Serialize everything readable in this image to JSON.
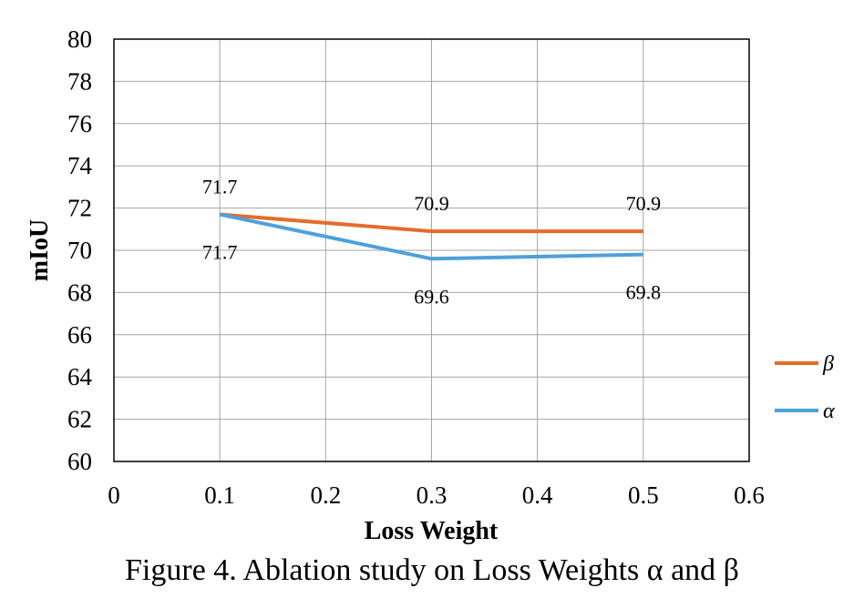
{
  "caption": "Figure 4. Ablation study on Loss Weights α and β",
  "chart_data": {
    "type": "line",
    "xlabel": "Loss Weight",
    "ylabel": "mIoU",
    "xlim": [
      0,
      0.6
    ],
    "ylim": [
      60,
      80
    ],
    "x_ticks": [
      "0",
      "0.1",
      "0.2",
      "0.3",
      "0.4",
      "0.5",
      "0.6"
    ],
    "y_ticks": [
      "60",
      "62",
      "64",
      "66",
      "68",
      "70",
      "72",
      "74",
      "76",
      "78",
      "80"
    ],
    "grid": true,
    "legend_position": "right",
    "series": [
      {
        "name": "β",
        "color": "#E46C2C",
        "x": [
          0.1,
          0.3,
          0.5
        ],
        "values": [
          71.7,
          70.9,
          70.9
        ],
        "labels": [
          "71.7",
          "70.9",
          "70.9"
        ],
        "label_placement": "above"
      },
      {
        "name": "α",
        "color": "#4EA0DB",
        "x": [
          0.1,
          0.3,
          0.5
        ],
        "values": [
          71.7,
          69.6,
          69.8
        ],
        "labels": [
          "71.7",
          "69.6",
          "69.8"
        ],
        "label_placement": "below"
      }
    ]
  }
}
